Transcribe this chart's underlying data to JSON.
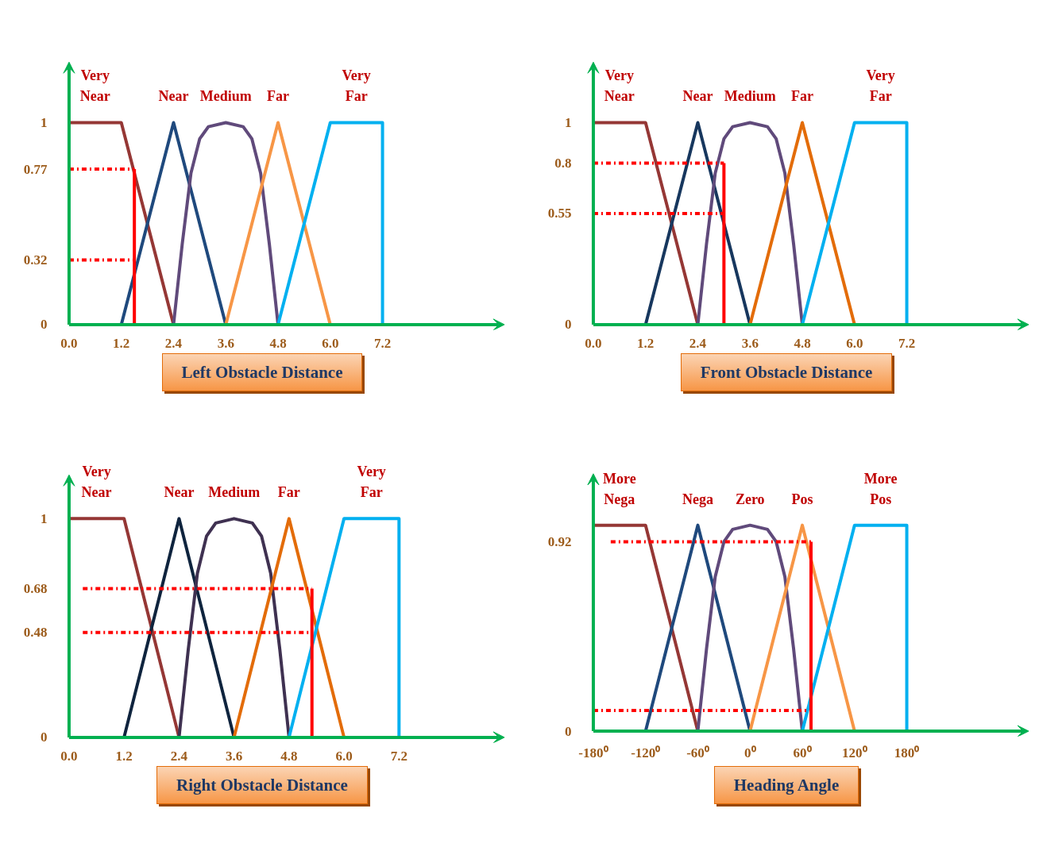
{
  "chart_data": [
    {
      "type": "line",
      "xlabel": "Left Obstacle Distance",
      "xlim": [
        0,
        10
      ],
      "ylim": [
        0,
        1.3
      ],
      "xticks": [
        {
          "value": 0,
          "label": "0.0"
        },
        1.2,
        2.4,
        3.6,
        4.8,
        {
          "value": 6,
          "label": "6.0"
        },
        7.2
      ],
      "yticks": [
        0,
        0.32,
        0.77,
        1
      ],
      "series": [
        {
          "name": "Very Near",
          "color": "#953735",
          "x": [
            0,
            1.2,
            2.4
          ],
          "values": [
            1,
            1,
            0
          ]
        },
        {
          "name": "Near",
          "color": "#1f497d",
          "x": [
            1.2,
            2.4,
            3.6
          ],
          "values": [
            0,
            1,
            0
          ]
        },
        {
          "name": "Medium",
          "color": "#604a7b",
          "x": [
            2.4,
            2.6,
            2.8,
            3.0,
            3.2,
            3.6,
            4.0,
            4.2,
            4.4,
            4.6,
            4.8
          ],
          "values": [
            0,
            0.4,
            0.75,
            0.92,
            0.98,
            1,
            0.98,
            0.92,
            0.75,
            0.4,
            0
          ]
        },
        {
          "name": "Far",
          "color": "#f79646",
          "x": [
            3.6,
            4.8,
            6.0
          ],
          "values": [
            0,
            1,
            0
          ]
        },
        {
          "name": "Very Far",
          "color": "#00b0f0",
          "x": [
            4.8,
            6.0,
            7.2,
            7.2
          ],
          "values": [
            0,
            1,
            1,
            0
          ]
        },
        {
          "color": "#ff0000",
          "line_style": "dashed",
          "x": [
            0,
            1.5
          ],
          "values": [
            0.77,
            0.77
          ]
        },
        {
          "color": "#ff0000",
          "line_style": "dashed",
          "x": [
            0,
            1.5
          ],
          "values": [
            0.32,
            0.32
          ]
        },
        {
          "color": "#ff0000",
          "line_style": "solid",
          "x": [
            1.5,
            1.5
          ],
          "values": [
            0,
            0.77
          ]
        }
      ]
    },
    {
      "type": "line",
      "xlabel": "Front Obstacle Distance",
      "xlim": [
        0,
        10
      ],
      "ylim": [
        0,
        1.3
      ],
      "xticks": [
        {
          "value": 0,
          "label": "0.0"
        },
        1.2,
        2.4,
        3.6,
        4.8,
        {
          "value": 6,
          "label": "6.0"
        },
        7.2
      ],
      "yticks": [
        0,
        0.55,
        0.8,
        1
      ],
      "series": [
        {
          "name": "Very Near",
          "color": "#953735",
          "x": [
            0,
            1.2,
            2.4
          ],
          "values": [
            1,
            1,
            0
          ]
        },
        {
          "name": "Near",
          "color": "#17375e",
          "x": [
            1.2,
            2.4,
            3.6
          ],
          "values": [
            0,
            1,
            0
          ]
        },
        {
          "name": "Medium",
          "color": "#604a7b",
          "x": [
            2.4,
            2.6,
            2.8,
            3.0,
            3.2,
            3.6,
            4.0,
            4.2,
            4.4,
            4.6,
            4.8
          ],
          "values": [
            0,
            0.4,
            0.75,
            0.92,
            0.98,
            1,
            0.98,
            0.92,
            0.75,
            0.4,
            0
          ]
        },
        {
          "name": "Far",
          "color": "#e36c09",
          "x": [
            3.6,
            4.8,
            6.0
          ],
          "values": [
            0,
            1,
            0
          ]
        },
        {
          "name": "Very Far",
          "color": "#00b0f0",
          "x": [
            4.8,
            6.0,
            7.2,
            7.2
          ],
          "values": [
            0,
            1,
            1,
            0
          ]
        },
        {
          "color": "#ff0000",
          "line_style": "dashed",
          "x": [
            0,
            3.0
          ],
          "values": [
            0.8,
            0.8
          ]
        },
        {
          "color": "#ff0000",
          "line_style": "dashed",
          "x": [
            0,
            3.0
          ],
          "values": [
            0.55,
            0.55
          ]
        },
        {
          "color": "#ff0000",
          "line_style": "solid",
          "x": [
            3.0,
            3.0
          ],
          "values": [
            0,
            0.8
          ]
        }
      ]
    },
    {
      "type": "line",
      "xlabel": "Right Obstacle Distance",
      "xlim": [
        0,
        9.5
      ],
      "ylim": [
        0,
        1.2
      ],
      "xticks": [
        {
          "value": 0,
          "label": "0.0"
        },
        1.2,
        2.4,
        3.6,
        4.8,
        {
          "value": 6,
          "label": "6.0"
        },
        7.2
      ],
      "yticks": [
        0,
        0.48,
        0.68,
        1
      ],
      "series": [
        {
          "name": "Very Near",
          "color": "#953735",
          "x": [
            0,
            1.2,
            2.4
          ],
          "values": [
            1,
            1,
            0
          ]
        },
        {
          "name": "Near",
          "color": "#0f243e",
          "x": [
            1.2,
            2.4,
            3.6
          ],
          "values": [
            0,
            1,
            0
          ]
        },
        {
          "name": "Medium",
          "color": "#3f3151",
          "x": [
            2.4,
            2.6,
            2.8,
            3.0,
            3.2,
            3.6,
            4.0,
            4.2,
            4.4,
            4.6,
            4.8
          ],
          "values": [
            0,
            0.4,
            0.75,
            0.92,
            0.98,
            1,
            0.98,
            0.92,
            0.75,
            0.4,
            0
          ]
        },
        {
          "name": "Far",
          "color": "#e36c09",
          "x": [
            3.6,
            4.8,
            6.0
          ],
          "values": [
            0,
            1,
            0
          ]
        },
        {
          "name": "Very Far",
          "color": "#00b0f0",
          "x": [
            4.8,
            6.0,
            7.2,
            7.2
          ],
          "values": [
            0,
            1,
            1,
            0
          ]
        },
        {
          "color": "#ff0000",
          "line_style": "dashed",
          "x": [
            0.3,
            5.3
          ],
          "values": [
            0.68,
            0.68
          ]
        },
        {
          "color": "#ff0000",
          "line_style": "dashed",
          "x": [
            0.3,
            5.3
          ],
          "values": [
            0.48,
            0.48
          ]
        },
        {
          "color": "#ff0000",
          "line_style": "solid",
          "x": [
            5.3,
            5.3
          ],
          "values": [
            0,
            0.68
          ]
        }
      ]
    },
    {
      "type": "line",
      "xlabel": "Heading Angle",
      "xlim": [
        -180,
        320
      ],
      "ylim": [
        0,
        1.25
      ],
      "xticks": [
        {
          "value": -180,
          "label": "-180⁰"
        },
        {
          "value": -120,
          "label": "-120⁰"
        },
        {
          "value": -60,
          "label": "-60⁰"
        },
        {
          "value": 0,
          "label": "0⁰"
        },
        {
          "value": 60,
          "label": "60⁰"
        },
        {
          "value": 120,
          "label": "120⁰"
        },
        {
          "value": 180,
          "label": "180⁰"
        }
      ],
      "yticks": [
        0,
        0.92
      ],
      "series": [
        {
          "name": "More Nega",
          "color": "#953735",
          "x": [
            -180,
            -120,
            -60
          ],
          "values": [
            1,
            1,
            0
          ]
        },
        {
          "name": "Nega",
          "color": "#1f497d",
          "x": [
            -120,
            -60,
            0
          ],
          "values": [
            0,
            1,
            0
          ]
        },
        {
          "name": "Zero",
          "color": "#604a7b",
          "x": [
            -60,
            -50,
            -40,
            -30,
            -20,
            0,
            20,
            30,
            40,
            50,
            60
          ],
          "values": [
            0,
            0.4,
            0.75,
            0.92,
            0.98,
            1,
            0.98,
            0.92,
            0.75,
            0.4,
            0
          ]
        },
        {
          "name": "Pos",
          "color": "#f79646",
          "x": [
            0,
            60,
            120
          ],
          "values": [
            0,
            1,
            0
          ]
        },
        {
          "name": "More Pos",
          "color": "#00b0f0",
          "x": [
            60,
            120,
            180,
            180
          ],
          "values": [
            0,
            1,
            1,
            0
          ]
        },
        {
          "color": "#ff0000",
          "line_style": "dashed",
          "x": [
            -160,
            70
          ],
          "values": [
            0.92,
            0.92
          ]
        },
        {
          "color": "#ff0000",
          "line_style": "dashed",
          "x": [
            -180,
            70
          ],
          "values": [
            0.1,
            0.1
          ]
        },
        {
          "color": "#ff0000",
          "line_style": "solid",
          "x": [
            70,
            70
          ],
          "values": [
            0,
            0.92
          ]
        }
      ]
    }
  ]
}
